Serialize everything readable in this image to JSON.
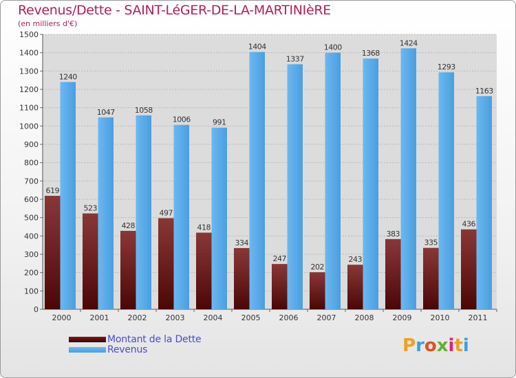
{
  "title": "Revenus/Dette - SAINT-LéGER-DE-LA-MARTINIèRE",
  "subtitle": "(en milliers d'€)",
  "colors": {
    "dette": "#7a1a1a",
    "revenus": "#4a9ee0",
    "title": "#b0205a",
    "legend_text": "#4a4ad0"
  },
  "chart_data": {
    "type": "bar",
    "title": "Revenus/Dette - SAINT-LéGER-DE-LA-MARTINIèRE",
    "ylabel": "(en milliers d'€)",
    "xlabel": "",
    "ylim": [
      0,
      1500
    ],
    "yticks": [
      "0",
      "100",
      "200",
      "300",
      "400",
      "500",
      "600",
      "700",
      "800",
      "900",
      "1000",
      "1100",
      "1200",
      "1300",
      "1400",
      "1500"
    ],
    "grid": true,
    "legend_position": "bottom-left",
    "categories": [
      "2000",
      "2001",
      "2002",
      "2003",
      "2004",
      "2005",
      "2006",
      "2007",
      "2008",
      "2009",
      "2010",
      "2011"
    ],
    "series": [
      {
        "name": "Montant de la Dette",
        "values": [
          619,
          523,
          428,
          497,
          418,
          334,
          247,
          202,
          243,
          383,
          335,
          436
        ]
      },
      {
        "name": "Revenus",
        "values": [
          1240,
          1047,
          1058,
          1006,
          991,
          1404,
          1337,
          1400,
          1368,
          1424,
          1293,
          1163
        ]
      }
    ]
  },
  "legend": {
    "dette_label": "Montant de la Dette",
    "revenus_label": "Revenus"
  },
  "logo": {
    "text": "Proxiti"
  }
}
